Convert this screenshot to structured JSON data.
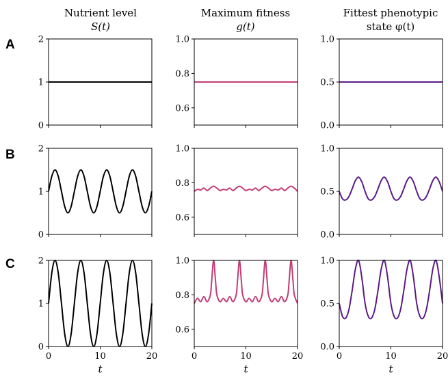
{
  "columns": [
    {
      "title_line1": "Nutrient level",
      "title_line2": "S(t)"
    },
    {
      "title_line1": "Maximum fitness",
      "title_line2": "g(t)"
    },
    {
      "title_line1": "Fittest phenotypic",
      "title_line2": "state φ(t)"
    }
  ],
  "row_labels": [
    "A",
    "B",
    "C"
  ],
  "colors": {
    "nutrient": "#000000",
    "fitness": "#c23b75",
    "phenotype": "#5b1a86"
  },
  "chart_data": [
    {
      "type": "line",
      "row": "A",
      "col": 0,
      "xlabel": "",
      "ylim": [
        0,
        2
      ],
      "yticks": [
        "0",
        "1",
        "2"
      ],
      "xlim": [
        0,
        20
      ],
      "xticks": [
        0,
        10,
        20
      ],
      "series": [
        {
          "x": [
            0,
            20
          ],
          "y": [
            1,
            1
          ]
        }
      ]
    },
    {
      "type": "line",
      "row": "A",
      "col": 1,
      "xlabel": "",
      "ylim": [
        0.5,
        1.0
      ],
      "yticks": [
        "0.6",
        "0.8",
        "1.0"
      ],
      "xlim": [
        0,
        20
      ],
      "xticks": [
        0,
        10,
        20
      ],
      "series": [
        {
          "x": [
            0,
            20
          ],
          "y": [
            0.75,
            0.75
          ]
        }
      ]
    },
    {
      "type": "line",
      "row": "A",
      "col": 2,
      "xlabel": "",
      "ylim": [
        0,
        1.0
      ],
      "yticks": [
        "0.0",
        "0.5",
        "1.0"
      ],
      "xlim": [
        0,
        20
      ],
      "xticks": [
        0,
        10,
        20
      ],
      "series": [
        {
          "x": [
            0,
            20
          ],
          "y": [
            0.5,
            0.5
          ]
        }
      ]
    },
    {
      "type": "line",
      "row": "B",
      "col": 0,
      "xlabel": "",
      "ylim": [
        0,
        2
      ],
      "yticks": [
        "0",
        "1",
        "2"
      ],
      "xlim": [
        0,
        20
      ],
      "xticks": [
        0,
        10,
        20
      ],
      "series": [
        {
          "x": [
            0,
            0.625,
            1.25,
            1.875,
            2.5,
            3.125,
            3.75,
            4.375,
            5,
            5.625,
            6.25,
            6.875,
            7.5,
            8.125,
            8.75,
            9.375,
            10,
            10.625,
            11.25,
            11.875,
            12.5,
            13.125,
            13.75,
            14.375,
            15,
            15.625,
            16.25,
            16.875,
            17.5,
            18.125,
            18.75,
            19.375,
            20
          ],
          "y": [
            1,
            1.35,
            1.5,
            1.35,
            1,
            0.65,
            0.5,
            0.65,
            1,
            1.35,
            1.5,
            1.35,
            1,
            0.65,
            0.5,
            0.65,
            1,
            1.35,
            1.5,
            1.35,
            1,
            0.65,
            0.5,
            0.65,
            1,
            1.35,
            1.5,
            1.35,
            1,
            0.65,
            0.5,
            0.65,
            1
          ]
        }
      ]
    },
    {
      "type": "line",
      "row": "B",
      "col": 1,
      "xlabel": "",
      "ylim": [
        0.5,
        1.0
      ],
      "yticks": [
        "0.6",
        "0.8",
        "1.0"
      ],
      "xlim": [
        0,
        20
      ],
      "xticks": [
        0,
        10,
        20
      ],
      "series": [
        {
          "x": [
            0,
            0.625,
            1.25,
            1.875,
            2.5,
            3.125,
            3.75,
            4.375,
            5,
            5.625,
            6.25,
            6.875,
            7.5,
            8.125,
            8.75,
            9.375,
            10,
            10.625,
            11.25,
            11.875,
            12.5,
            13.125,
            13.75,
            14.375,
            15,
            15.625,
            16.25,
            16.875,
            17.5,
            18.125,
            18.75,
            19.375,
            20
          ],
          "y": [
            0.75,
            0.762,
            0.758,
            0.769,
            0.755,
            0.769,
            0.78,
            0.769,
            0.755,
            0.762,
            0.758,
            0.769,
            0.755,
            0.769,
            0.78,
            0.769,
            0.755,
            0.762,
            0.758,
            0.769,
            0.755,
            0.769,
            0.78,
            0.769,
            0.755,
            0.762,
            0.758,
            0.769,
            0.755,
            0.769,
            0.78,
            0.769,
            0.75
          ]
        }
      ]
    },
    {
      "type": "line",
      "row": "B",
      "col": 2,
      "xlabel": "",
      "ylim": [
        0,
        1.0
      ],
      "yticks": [
        "0.0",
        "0.5",
        "1.0"
      ],
      "xlim": [
        0,
        20
      ],
      "xticks": [
        0,
        10,
        20
      ],
      "series": [
        {
          "x": [
            0,
            0.625,
            1.25,
            1.875,
            2.5,
            3.125,
            3.75,
            4.375,
            5,
            5.625,
            6.25,
            6.875,
            7.5,
            8.125,
            8.75,
            9.375,
            10,
            10.625,
            11.25,
            11.875,
            12.5,
            13.125,
            13.75,
            14.375,
            15,
            15.625,
            16.25,
            16.875,
            17.5,
            18.125,
            18.75,
            19.375,
            20
          ],
          "y": [
            0.5,
            0.413,
            0.4,
            0.44,
            0.53,
            0.625,
            0.665,
            0.61,
            0.5,
            0.413,
            0.4,
            0.44,
            0.53,
            0.625,
            0.665,
            0.61,
            0.5,
            0.413,
            0.4,
            0.44,
            0.53,
            0.625,
            0.665,
            0.61,
            0.5,
            0.413,
            0.4,
            0.44,
            0.53,
            0.625,
            0.665,
            0.61,
            0.5
          ]
        }
      ]
    },
    {
      "type": "line",
      "row": "C",
      "col": 0,
      "xlabel": "t",
      "ylim": [
        0,
        2
      ],
      "yticks": [
        "0",
        "1",
        "2"
      ],
      "xlim": [
        0,
        20
      ],
      "xticks": [
        0,
        10,
        20
      ],
      "series": [
        {
          "x": [
            0,
            0.625,
            1.25,
            1.875,
            2.5,
            3.125,
            3.75,
            4.375,
            5,
            5.625,
            6.25,
            6.875,
            7.5,
            8.125,
            8.75,
            9.375,
            10,
            10.625,
            11.25,
            11.875,
            12.5,
            13.125,
            13.75,
            14.375,
            15,
            15.625,
            16.25,
            16.875,
            17.5,
            18.125,
            18.75,
            19.375,
            20
          ],
          "y": [
            1,
            1.707,
            2,
            1.707,
            1,
            0.293,
            0,
            0.293,
            1,
            1.707,
            2,
            1.707,
            1,
            0.293,
            0,
            0.293,
            1,
            1.707,
            2,
            1.707,
            1,
            0.293,
            0,
            0.293,
            1,
            1.707,
            2,
            1.707,
            1,
            0.293,
            0,
            0.293,
            1
          ]
        }
      ]
    },
    {
      "type": "line",
      "row": "C",
      "col": 1,
      "xlabel": "t",
      "ylim": [
        0.5,
        1.0
      ],
      "yticks": [
        "0.6",
        "0.8",
        "1.0"
      ],
      "xlim": [
        0,
        20
      ],
      "xticks": [
        0,
        10,
        20
      ],
      "series": [
        {
          "x": [
            0,
            0.625,
            1.25,
            1.875,
            2.5,
            3.125,
            3.375,
            3.75,
            4.125,
            4.375,
            5,
            5.625,
            6.25,
            6.875,
            7.5,
            8.125,
            8.375,
            8.75,
            9.125,
            9.375,
            10,
            10.625,
            11.25,
            11.875,
            12.5,
            13.125,
            13.375,
            13.75,
            14.125,
            14.375,
            15,
            15.625,
            16.25,
            16.875,
            17.5,
            18.125,
            18.375,
            18.75,
            19.125,
            19.375,
            20
          ],
          "y": [
            0.75,
            0.78,
            0.76,
            0.79,
            0.76,
            0.8,
            0.88,
            1.0,
            0.88,
            0.8,
            0.76,
            0.78,
            0.76,
            0.79,
            0.76,
            0.8,
            0.88,
            1.0,
            0.88,
            0.8,
            0.76,
            0.78,
            0.76,
            0.79,
            0.76,
            0.8,
            0.88,
            1.0,
            0.88,
            0.8,
            0.76,
            0.78,
            0.76,
            0.79,
            0.76,
            0.8,
            0.88,
            1.0,
            0.88,
            0.8,
            0.75
          ]
        }
      ]
    },
    {
      "type": "line",
      "row": "C",
      "col": 2,
      "xlabel": "t",
      "ylim": [
        0,
        1.0
      ],
      "yticks": [
        "0.0",
        "0.5",
        "1.0"
      ],
      "xlim": [
        0,
        20
      ],
      "xticks": [
        0,
        10,
        20
      ],
      "series": [
        {
          "x": [
            0,
            0.625,
            1.25,
            1.875,
            2.5,
            3.125,
            3.75,
            4.375,
            5,
            5.625,
            6.25,
            6.875,
            7.5,
            8.125,
            8.75,
            9.375,
            10,
            10.625,
            11.25,
            11.875,
            12.5,
            13.125,
            13.75,
            14.375,
            15,
            15.625,
            16.25,
            16.875,
            17.5,
            18.125,
            18.75,
            19.375,
            20
          ],
          "y": [
            0.5,
            0.35,
            0.33,
            0.43,
            0.65,
            0.9,
            1.0,
            0.8,
            0.5,
            0.35,
            0.33,
            0.43,
            0.65,
            0.9,
            1.0,
            0.8,
            0.5,
            0.35,
            0.33,
            0.43,
            0.65,
            0.9,
            1.0,
            0.8,
            0.5,
            0.35,
            0.33,
            0.43,
            0.65,
            0.9,
            1.0,
            0.8,
            0.5
          ]
        }
      ]
    }
  ]
}
